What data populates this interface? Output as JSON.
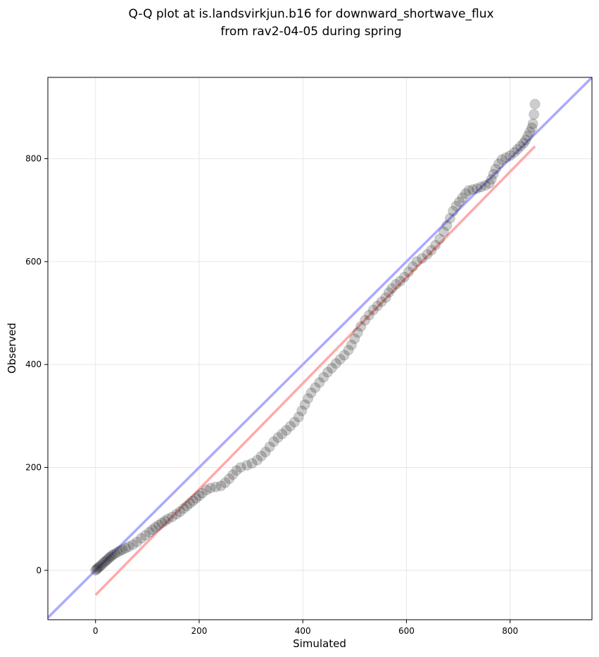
{
  "chart_data": {
    "type": "scatter",
    "title_line1": "Q-Q plot at is.landsvirkjun.b16 for downward_shortwave_flux",
    "title_line2": "from rav2-04-05 during spring",
    "xlabel": "Simulated",
    "ylabel": "Observed",
    "xlim": [
      -92,
      958
    ],
    "ylim": [
      -96,
      958
    ],
    "xticks": [
      0,
      200,
      400,
      600,
      800
    ],
    "yticks": [
      0,
      200,
      400,
      600,
      800
    ],
    "grid": true,
    "identity_line": {
      "color": "#aaaaff",
      "from": [
        -92,
        -92
      ],
      "to": [
        958,
        958
      ]
    },
    "fit_line": {
      "color": "#ffaaaa",
      "from": [
        0,
        -48
      ],
      "to": [
        848,
        824
      ]
    },
    "quantiles": [
      [
        0,
        0
      ],
      [
        2,
        2
      ],
      [
        4,
        4
      ],
      [
        6,
        6
      ],
      [
        9,
        8
      ],
      [
        12,
        11
      ],
      [
        15,
        14
      ],
      [
        18,
        17
      ],
      [
        21,
        19
      ],
      [
        24,
        22
      ],
      [
        27,
        25
      ],
      [
        30,
        27
      ],
      [
        33,
        30
      ],
      [
        37,
        32
      ],
      [
        42,
        35
      ],
      [
        47,
        38
      ],
      [
        52,
        40
      ],
      [
        58,
        43
      ],
      [
        64,
        46
      ],
      [
        72,
        50
      ],
      [
        80,
        55
      ],
      [
        88,
        62
      ],
      [
        96,
        68
      ],
      [
        104,
        74
      ],
      [
        110,
        79
      ],
      [
        116,
        84
      ],
      [
        122,
        88
      ],
      [
        128,
        92
      ],
      [
        134,
        96
      ],
      [
        140,
        100
      ],
      [
        148,
        104
      ],
      [
        156,
        109
      ],
      [
        163,
        114
      ],
      [
        170,
        120
      ],
      [
        176,
        125
      ],
      [
        182,
        130
      ],
      [
        188,
        135
      ],
      [
        194,
        140
      ],
      [
        200,
        145
      ],
      [
        206,
        150
      ],
      [
        214,
        156
      ],
      [
        222,
        160
      ],
      [
        232,
        162
      ],
      [
        242,
        164
      ],
      [
        250,
        170
      ],
      [
        258,
        178
      ],
      [
        265,
        186
      ],
      [
        272,
        194
      ],
      [
        280,
        200
      ],
      [
        292,
        204
      ],
      [
        302,
        208
      ],
      [
        312,
        214
      ],
      [
        320,
        222
      ],
      [
        328,
        230
      ],
      [
        336,
        240
      ],
      [
        344,
        250
      ],
      [
        352,
        258
      ],
      [
        360,
        265
      ],
      [
        368,
        272
      ],
      [
        376,
        280
      ],
      [
        384,
        288
      ],
      [
        392,
        298
      ],
      [
        398,
        310
      ],
      [
        404,
        322
      ],
      [
        410,
        334
      ],
      [
        416,
        345
      ],
      [
        424,
        355
      ],
      [
        432,
        365
      ],
      [
        440,
        375
      ],
      [
        448,
        385
      ],
      [
        456,
        393
      ],
      [
        464,
        402
      ],
      [
        472,
        410
      ],
      [
        480,
        418
      ],
      [
        488,
        428
      ],
      [
        494,
        438
      ],
      [
        500,
        450
      ],
      [
        506,
        462
      ],
      [
        512,
        474
      ],
      [
        520,
        486
      ],
      [
        528,
        496
      ],
      [
        536,
        506
      ],
      [
        544,
        514
      ],
      [
        552,
        522
      ],
      [
        560,
        530
      ],
      [
        566,
        540
      ],
      [
        572,
        548
      ],
      [
        580,
        556
      ],
      [
        588,
        562
      ],
      [
        596,
        570
      ],
      [
        604,
        580
      ],
      [
        612,
        590
      ],
      [
        620,
        600
      ],
      [
        630,
        606
      ],
      [
        640,
        614
      ],
      [
        648,
        622
      ],
      [
        656,
        632
      ],
      [
        664,
        644
      ],
      [
        672,
        658
      ],
      [
        678,
        670
      ],
      [
        684,
        684
      ],
      [
        690,
        698
      ],
      [
        696,
        708
      ],
      [
        702,
        716
      ],
      [
        708,
        724
      ],
      [
        714,
        732
      ],
      [
        720,
        738
      ],
      [
        728,
        740
      ],
      [
        736,
        742
      ],
      [
        744,
        745
      ],
      [
        752,
        748
      ],
      [
        760,
        752
      ],
      [
        764,
        760
      ],
      [
        768,
        770
      ],
      [
        772,
        780
      ],
      [
        778,
        790
      ],
      [
        784,
        798
      ],
      [
        792,
        802
      ],
      [
        800,
        806
      ],
      [
        808,
        812
      ],
      [
        814,
        818
      ],
      [
        820,
        824
      ],
      [
        826,
        830
      ],
      [
        830,
        836
      ],
      [
        834,
        844
      ],
      [
        838,
        852
      ],
      [
        842,
        860
      ],
      [
        844,
        868
      ],
      [
        846,
        886
      ],
      [
        848,
        906
      ]
    ]
  }
}
